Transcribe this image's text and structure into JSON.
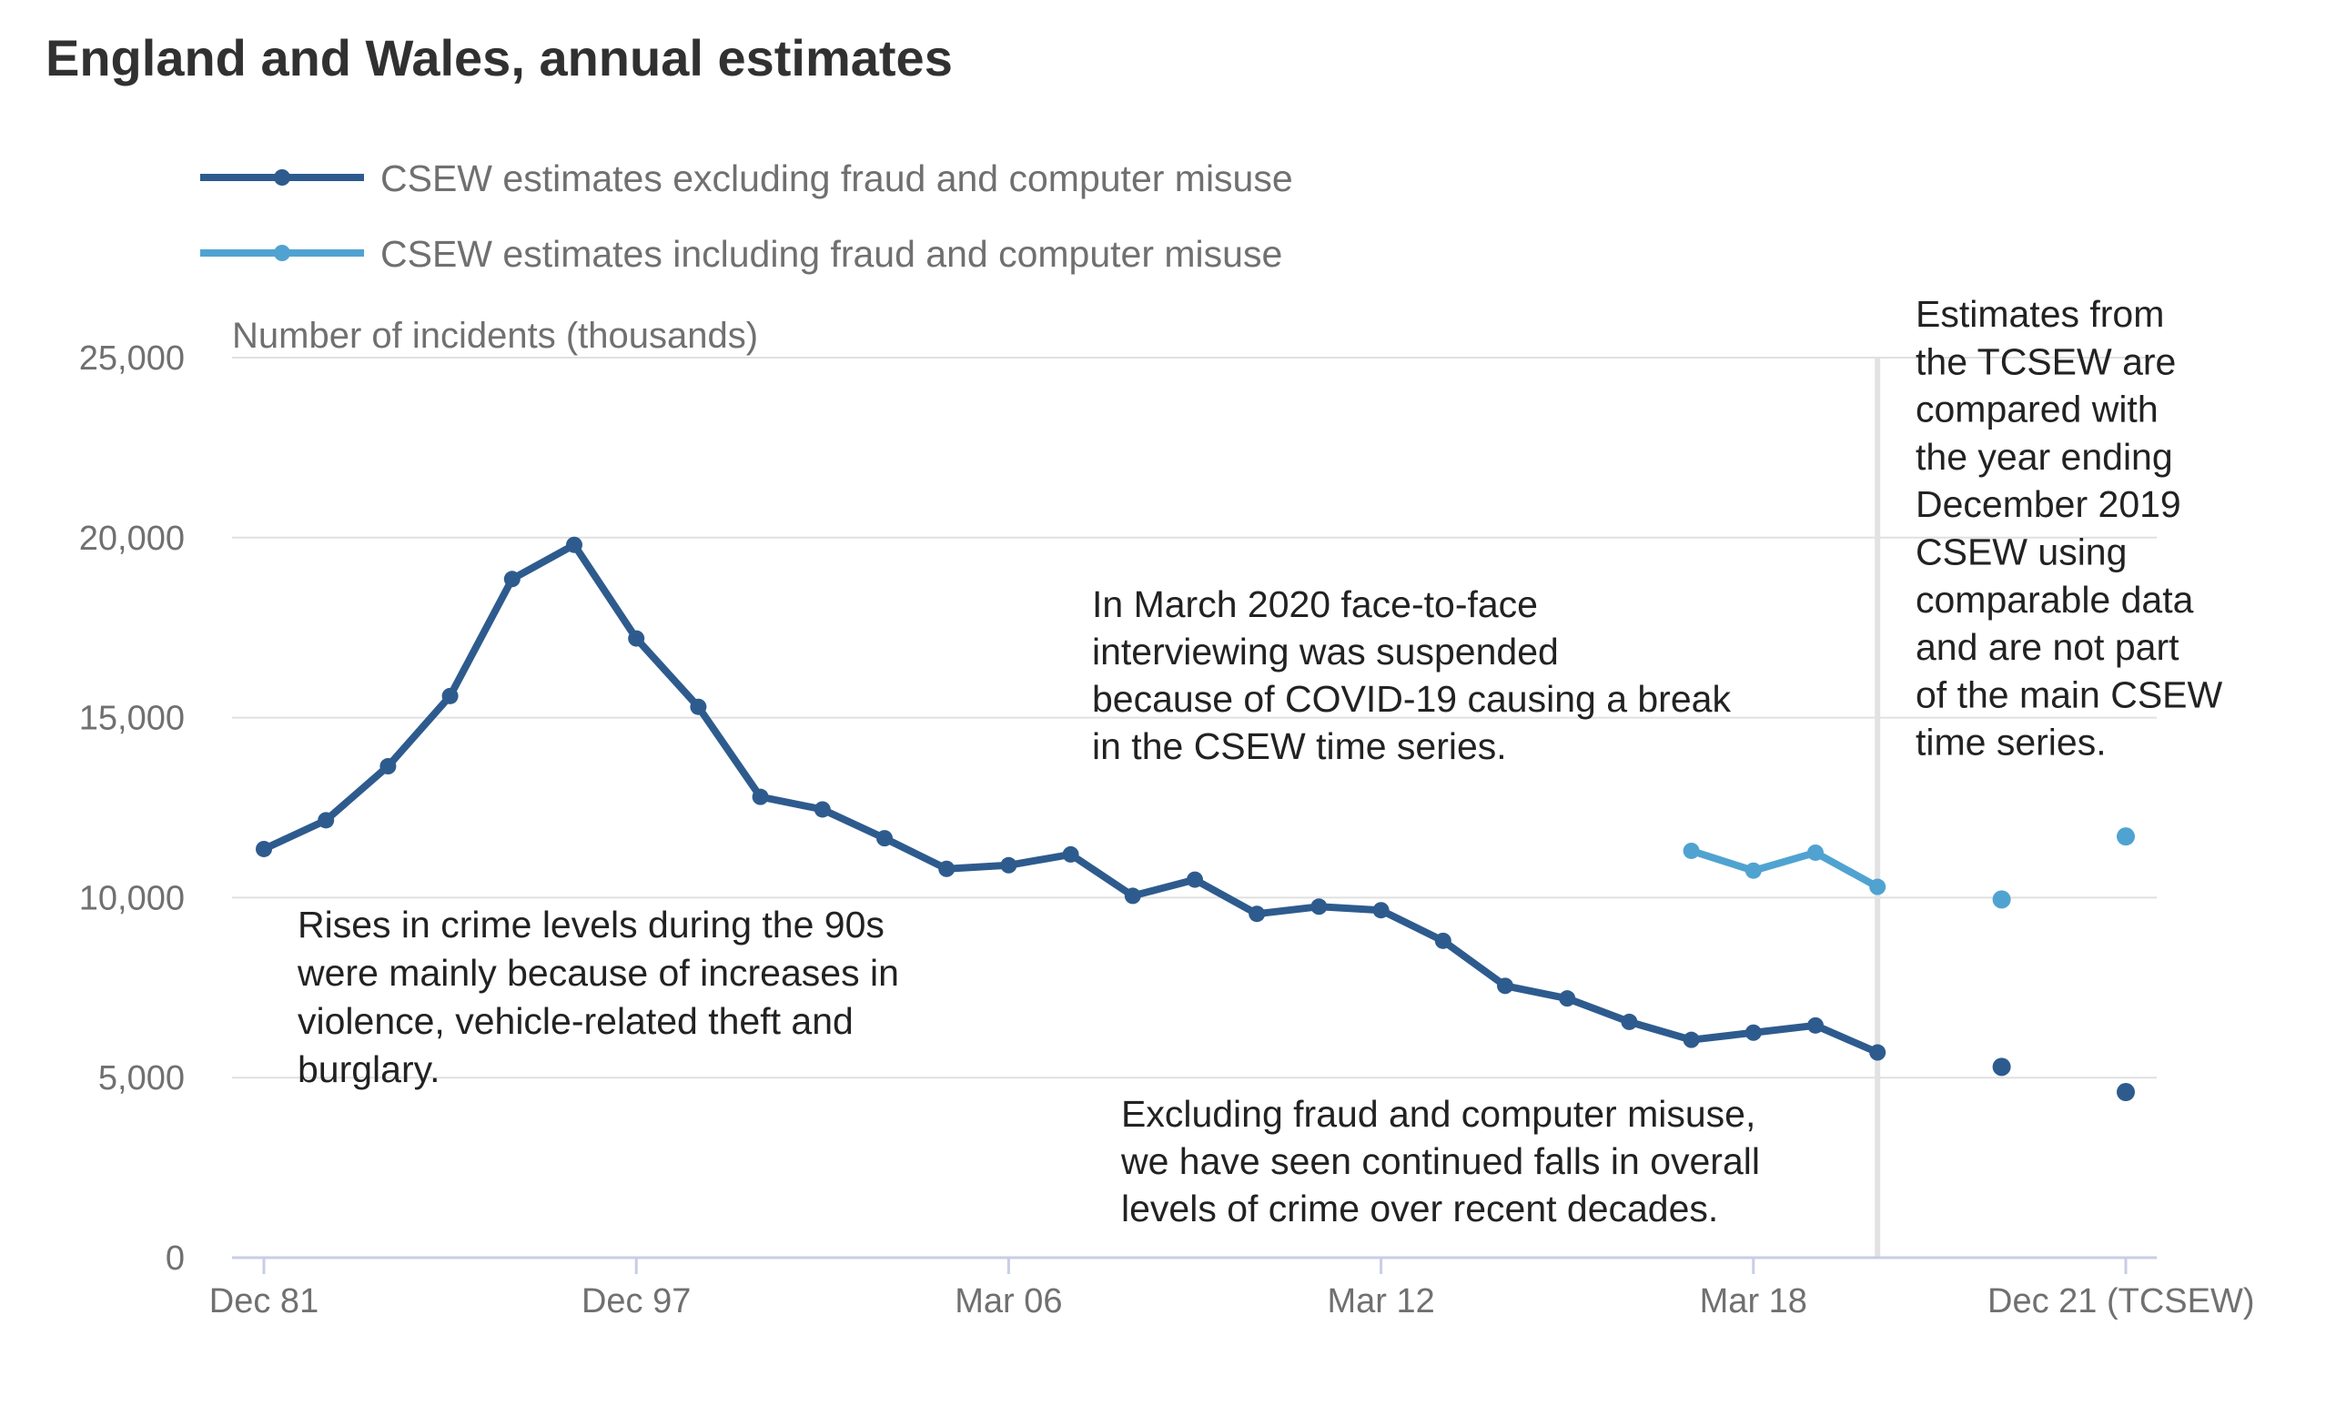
{
  "chart_data": {
    "type": "line",
    "title": "England and Wales, annual estimates",
    "ylabel": "Number of incidents (thousands)",
    "ylim": [
      0,
      25000
    ],
    "yticks": [
      0,
      5000,
      10000,
      15000,
      20000,
      25000
    ],
    "ytick_labels": [
      "0",
      "5,000",
      "10,000",
      "15,000",
      "20,000",
      "25,000"
    ],
    "xtick_labels": [
      "Dec 81",
      "Dec 97",
      "Mar 06",
      "Mar 12",
      "Mar 18",
      "Dec 21 (TCSEW)"
    ],
    "xtick_positions": [
      0,
      6,
      12,
      18,
      24,
      30
    ],
    "grid": true,
    "legend_position": "top-left",
    "colors": {
      "dark": "#2e5b8e",
      "light": "#50a3d1"
    },
    "series": [
      {
        "name": "CSEW estimates excluding fraud and computer misuse",
        "color": "#2e5b8e",
        "points": [
          {
            "x": 0,
            "y": 11350
          },
          {
            "x": 1,
            "y": 12150
          },
          {
            "x": 2,
            "y": 13650
          },
          {
            "x": 3,
            "y": 15600
          },
          {
            "x": 4,
            "y": 18850
          },
          {
            "x": 5,
            "y": 19800
          },
          {
            "x": 6,
            "y": 17200
          },
          {
            "x": 7,
            "y": 15300
          },
          {
            "x": 8,
            "y": 12800
          },
          {
            "x": 9,
            "y": 12450
          },
          {
            "x": 10,
            "y": 11650
          },
          {
            "x": 11,
            "y": 10800
          },
          {
            "x": 12,
            "y": 10900
          },
          {
            "x": 13,
            "y": 11200
          },
          {
            "x": 14,
            "y": 10050
          },
          {
            "x": 15,
            "y": 10500
          },
          {
            "x": 16,
            "y": 9550
          },
          {
            "x": 17,
            "y": 9750
          },
          {
            "x": 18,
            "y": 9650
          },
          {
            "x": 19,
            "y": 8800
          },
          {
            "x": 20,
            "y": 7550
          },
          {
            "x": 21,
            "y": 7200
          },
          {
            "x": 22,
            "y": 6550
          },
          {
            "x": 23,
            "y": 6050
          },
          {
            "x": 24,
            "y": 6250
          },
          {
            "x": 25,
            "y": 6450
          },
          {
            "x": 26,
            "y": 5700
          }
        ],
        "extra_points": [
          {
            "x": 28,
            "y": 5300
          },
          {
            "x": 30,
            "y": 4600
          }
        ]
      },
      {
        "name": "CSEW estimates including fraud and computer misuse",
        "color": "#50a3d1",
        "points": [
          {
            "x": 23,
            "y": 11300
          },
          {
            "x": 24,
            "y": 10750
          },
          {
            "x": 25,
            "y": 11250
          },
          {
            "x": 26,
            "y": 10300
          }
        ],
        "extra_points": [
          {
            "x": 28,
            "y": 9950
          },
          {
            "x": 30,
            "y": 11700
          }
        ]
      }
    ],
    "break_after_x": 26,
    "annotations": [
      {
        "name": "annotation-90s-rises",
        "lines": [
          "Rises in crime levels during the 90s",
          "were mainly because of increases in",
          "violence, vehicle-related theft and",
          "burglary."
        ]
      },
      {
        "name": "annotation-covid-break",
        "lines": [
          "In March 2020 face-to-face",
          "interviewing was suspended",
          "because of COVID-19 causing a break",
          "in the CSEW time series."
        ]
      },
      {
        "name": "annotation-falls",
        "lines": [
          "Excluding fraud and computer misuse,",
          "we have seen continued falls in overall",
          "levels of crime over recent decades."
        ]
      },
      {
        "name": "annotation-tcsew",
        "lines": [
          "Estimates from",
          "the TCSEW are",
          "compared with",
          "the year ending",
          "December 2019",
          "CSEW using",
          "comparable data",
          "and are not part",
          "of the main CSEW",
          "time series."
        ]
      }
    ]
  }
}
